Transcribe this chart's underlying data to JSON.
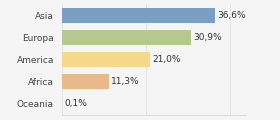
{
  "categories": [
    "Asia",
    "Europa",
    "America",
    "Africa",
    "Oceania"
  ],
  "values": [
    36.6,
    30.9,
    21.0,
    11.3,
    0.1
  ],
  "labels": [
    "36,6%",
    "30,9%",
    "21,0%",
    "11,3%",
    "0,1%"
  ],
  "bar_colors": [
    "#7a9fc2",
    "#b5c98e",
    "#f5d88a",
    "#e8b98a",
    "#d0d0d0"
  ],
  "background_color": "#f5f5f5",
  "xlim": [
    0,
    44
  ],
  "bar_height": 0.68,
  "label_fontsize": 6.5,
  "tick_fontsize": 6.5
}
